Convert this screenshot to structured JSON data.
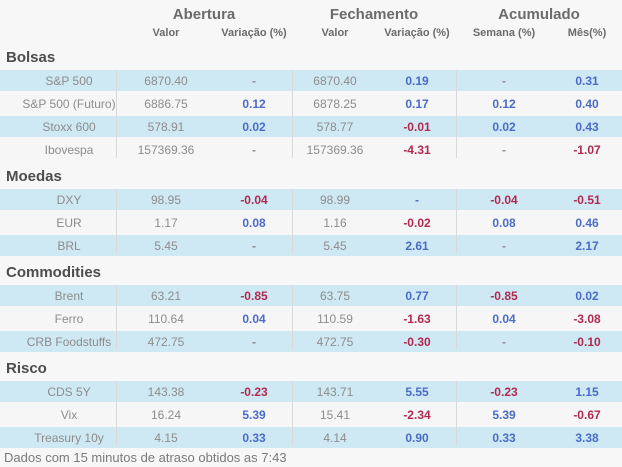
{
  "colors": {
    "positive": "#4a6bc8",
    "negative": "#b02a50",
    "neutral_text": "#8c8c8c",
    "row_highlight": "#cfe9f4",
    "background": "#f7f7f7"
  },
  "chart_data": {
    "type": "table",
    "column_groups": [
      {
        "label": "Abertura"
      },
      {
        "label": "Fechamento"
      },
      {
        "label": "Acumulado"
      }
    ],
    "sub_columns": [
      "Valor",
      "Variação (%)",
      "Valor",
      "Variação (%)",
      "Semana (%)",
      "Mês(%)"
    ],
    "sections": [
      {
        "title": "Bolsas",
        "rows": [
          {
            "label": "S&P 500",
            "cells": [
              {
                "v": "6870.40",
                "t": "val"
              },
              {
                "v": "-",
                "t": "neu"
              },
              {
                "v": "6870.40",
                "t": "val"
              },
              {
                "v": "0.19",
                "t": "pos"
              },
              {
                "v": "-",
                "t": "neu"
              },
              {
                "v": "0.31",
                "t": "pos"
              }
            ]
          },
          {
            "label": "S&P 500 (Futuro)",
            "cells": [
              {
                "v": "6886.75",
                "t": "val"
              },
              {
                "v": "0.12",
                "t": "pos"
              },
              {
                "v": "6878.25",
                "t": "val"
              },
              {
                "v": "0.17",
                "t": "pos"
              },
              {
                "v": "0.12",
                "t": "pos"
              },
              {
                "v": "0.40",
                "t": "pos"
              }
            ]
          },
          {
            "label": "Stoxx 600",
            "cells": [
              {
                "v": "578.91",
                "t": "val"
              },
              {
                "v": "0.02",
                "t": "pos"
              },
              {
                "v": "578.77",
                "t": "val"
              },
              {
                "v": "-0.01",
                "t": "neg"
              },
              {
                "v": "0.02",
                "t": "pos"
              },
              {
                "v": "0.43",
                "t": "pos"
              }
            ]
          },
          {
            "label": "Ibovespa",
            "cells": [
              {
                "v": "157369.36",
                "t": "val"
              },
              {
                "v": "-",
                "t": "neu"
              },
              {
                "v": "157369.36",
                "t": "val"
              },
              {
                "v": "-4.31",
                "t": "neg"
              },
              {
                "v": "-",
                "t": "neu"
              },
              {
                "v": "-1.07",
                "t": "neg"
              }
            ]
          }
        ]
      },
      {
        "title": "Moedas",
        "rows": [
          {
            "label": "DXY",
            "cells": [
              {
                "v": "98.95",
                "t": "val"
              },
              {
                "v": "-0.04",
                "t": "neg"
              },
              {
                "v": "98.99",
                "t": "val"
              },
              {
                "v": "-",
                "t": "pos"
              },
              {
                "v": "-0.04",
                "t": "neg"
              },
              {
                "v": "-0.51",
                "t": "neg"
              }
            ]
          },
          {
            "label": "EUR",
            "cells": [
              {
                "v": "1.17",
                "t": "val"
              },
              {
                "v": "0.08",
                "t": "pos"
              },
              {
                "v": "1.16",
                "t": "val"
              },
              {
                "v": "-0.02",
                "t": "neg"
              },
              {
                "v": "0.08",
                "t": "pos"
              },
              {
                "v": "0.46",
                "t": "pos"
              }
            ]
          },
          {
            "label": "BRL",
            "cells": [
              {
                "v": "5.45",
                "t": "val"
              },
              {
                "v": "-",
                "t": "neu"
              },
              {
                "v": "5.45",
                "t": "val"
              },
              {
                "v": "2.61",
                "t": "pos"
              },
              {
                "v": "-",
                "t": "neu"
              },
              {
                "v": "2.17",
                "t": "pos"
              }
            ]
          }
        ]
      },
      {
        "title": "Commodities",
        "rows": [
          {
            "label": "Brent",
            "cells": [
              {
                "v": "63.21",
                "t": "val"
              },
              {
                "v": "-0.85",
                "t": "neg"
              },
              {
                "v": "63.75",
                "t": "val"
              },
              {
                "v": "0.77",
                "t": "pos"
              },
              {
                "v": "-0.85",
                "t": "neg"
              },
              {
                "v": "0.02",
                "t": "pos"
              }
            ]
          },
          {
            "label": "Ferro",
            "cells": [
              {
                "v": "110.64",
                "t": "val"
              },
              {
                "v": "0.04",
                "t": "pos"
              },
              {
                "v": "110.59",
                "t": "val"
              },
              {
                "v": "-1.63",
                "t": "neg"
              },
              {
                "v": "0.04",
                "t": "pos"
              },
              {
                "v": "-3.08",
                "t": "neg"
              }
            ]
          },
          {
            "label": "CRB Foodstuffs",
            "cells": [
              {
                "v": "472.75",
                "t": "val"
              },
              {
                "v": "-",
                "t": "neu"
              },
              {
                "v": "472.75",
                "t": "val"
              },
              {
                "v": "-0.30",
                "t": "neg"
              },
              {
                "v": "-",
                "t": "neu"
              },
              {
                "v": "-0.10",
                "t": "neg"
              }
            ]
          }
        ]
      },
      {
        "title": "Risco",
        "rows": [
          {
            "label": "CDS 5Y",
            "cells": [
              {
                "v": "143.38",
                "t": "val"
              },
              {
                "v": "-0.23",
                "t": "neg"
              },
              {
                "v": "143.71",
                "t": "val"
              },
              {
                "v": "5.55",
                "t": "pos"
              },
              {
                "v": "-0.23",
                "t": "neg"
              },
              {
                "v": "1.15",
                "t": "pos"
              }
            ]
          },
          {
            "label": "Vix",
            "cells": [
              {
                "v": "16.24",
                "t": "val"
              },
              {
                "v": "5.39",
                "t": "pos"
              },
              {
                "v": "15.41",
                "t": "val"
              },
              {
                "v": "-2.34",
                "t": "neg"
              },
              {
                "v": "5.39",
                "t": "pos"
              },
              {
                "v": "-0.67",
                "t": "neg"
              }
            ]
          },
          {
            "label": "Treasury 10y",
            "cells": [
              {
                "v": "4.15",
                "t": "val"
              },
              {
                "v": "0.33",
                "t": "pos"
              },
              {
                "v": "4.14",
                "t": "val"
              },
              {
                "v": "0.90",
                "t": "pos"
              },
              {
                "v": "0.33",
                "t": "pos"
              },
              {
                "v": "3.38",
                "t": "pos"
              }
            ]
          }
        ]
      }
    ]
  },
  "footer": {
    "text": "Dados com 15 minutos de atraso obtidos as 7:43"
  }
}
